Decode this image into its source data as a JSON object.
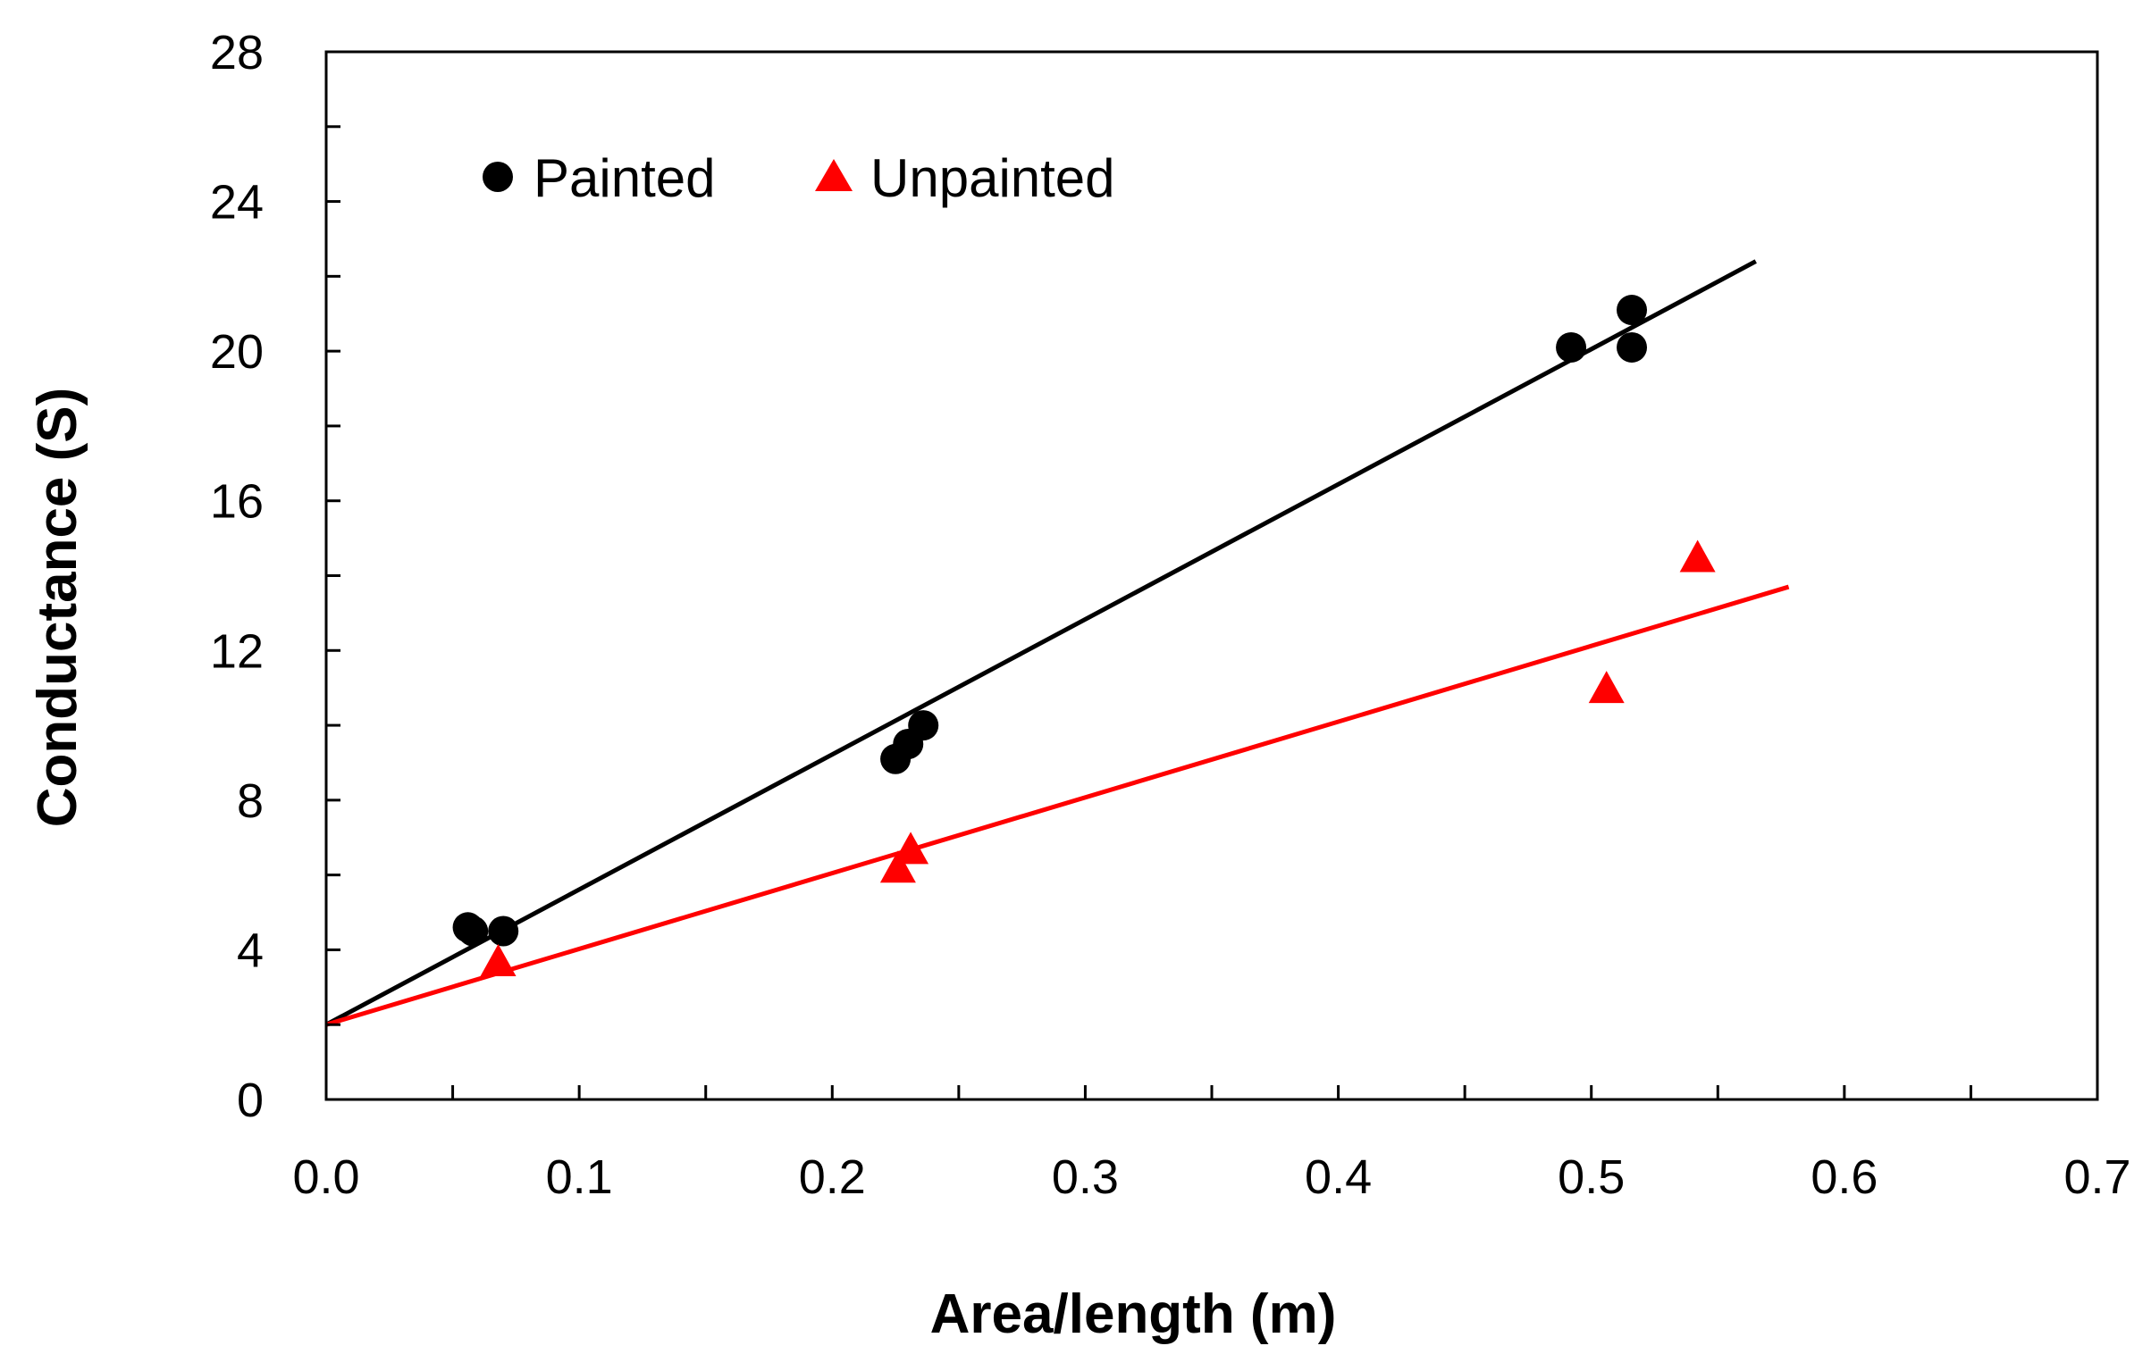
{
  "chart_data": {
    "type": "scatter",
    "xlabel": "Area/length (m)",
    "ylabel": "Conductance (S)",
    "xlim": [
      0.0,
      0.7
    ],
    "ylim": [
      0,
      28
    ],
    "x_ticks": [
      "0.0",
      "0.1",
      "0.2",
      "0.3",
      "0.4",
      "0.5",
      "0.6",
      "0.7"
    ],
    "y_ticks": [
      "0",
      "4",
      "8",
      "12",
      "16",
      "20",
      "24",
      "28"
    ],
    "x_tick_values": [
      0.0,
      0.1,
      0.2,
      0.3,
      0.4,
      0.5,
      0.6,
      0.7
    ],
    "y_tick_values": [
      0,
      4,
      8,
      12,
      16,
      20,
      24,
      28
    ],
    "x_minor_step": 0.05,
    "y_minor_step": 2,
    "grid": false,
    "legend_position": "top-left",
    "series": [
      {
        "name": "Painted",
        "marker": "circle",
        "color": "#000000",
        "points": [
          {
            "x": 0.056,
            "y": 4.6
          },
          {
            "x": 0.058,
            "y": 4.5
          },
          {
            "x": 0.07,
            "y": 4.5
          },
          {
            "x": 0.225,
            "y": 9.1
          },
          {
            "x": 0.23,
            "y": 9.5
          },
          {
            "x": 0.236,
            "y": 10.0
          },
          {
            "x": 0.492,
            "y": 20.1
          },
          {
            "x": 0.516,
            "y": 21.1
          },
          {
            "x": 0.516,
            "y": 20.1
          }
        ],
        "fit": {
          "x": [
            0.0,
            0.565
          ],
          "y": [
            2.0,
            22.4
          ]
        }
      },
      {
        "name": "Unpainted",
        "marker": "triangle",
        "color": "#ff0000",
        "points": [
          {
            "x": 0.068,
            "y": 3.7
          },
          {
            "x": 0.226,
            "y": 6.2
          },
          {
            "x": 0.231,
            "y": 6.7
          },
          {
            "x": 0.506,
            "y": 11.0
          },
          {
            "x": 0.542,
            "y": 14.5
          }
        ],
        "fit": {
          "x": [
            0.0,
            0.578
          ],
          "y": [
            2.0,
            13.7
          ]
        }
      }
    ]
  }
}
